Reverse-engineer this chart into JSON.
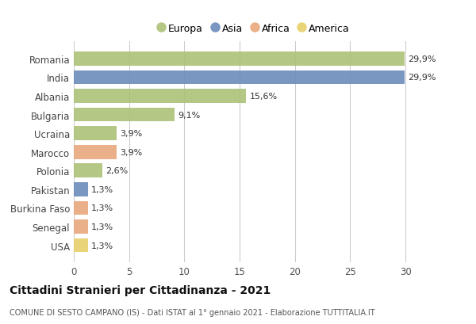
{
  "countries": [
    "Romania",
    "India",
    "Albania",
    "Bulgaria",
    "Ucraina",
    "Marocco",
    "Polonia",
    "Pakistan",
    "Burkina Faso",
    "Senegal",
    "USA"
  ],
  "values": [
    29.9,
    29.9,
    15.6,
    9.1,
    3.9,
    3.9,
    2.6,
    1.3,
    1.3,
    1.3,
    1.3
  ],
  "labels": [
    "29,9%",
    "29,9%",
    "15,6%",
    "9,1%",
    "3,9%",
    "3,9%",
    "2,6%",
    "1,3%",
    "1,3%",
    "1,3%",
    "1,3%"
  ],
  "continents": [
    "Europa",
    "Asia",
    "Europa",
    "Europa",
    "Europa",
    "Africa",
    "Europa",
    "Asia",
    "Africa",
    "Africa",
    "America"
  ],
  "colors": {
    "Europa": "#adc178",
    "Asia": "#6b8cba",
    "Africa": "#e8a87c",
    "America": "#e8d06a"
  },
  "legend_order": [
    "Europa",
    "Asia",
    "Africa",
    "America"
  ],
  "title": "Cittadini Stranieri per Cittadinanza - 2021",
  "subtitle": "COMUNE DI SESTO CAMPANO (IS) - Dati ISTAT al 1° gennaio 2021 - Elaborazione TUTTITALIA.IT",
  "xlim": [
    0,
    32.5
  ],
  "xticks": [
    0,
    5,
    10,
    15,
    20,
    25,
    30
  ],
  "background_color": "#ffffff",
  "plot_bg_color": "#ffffff"
}
